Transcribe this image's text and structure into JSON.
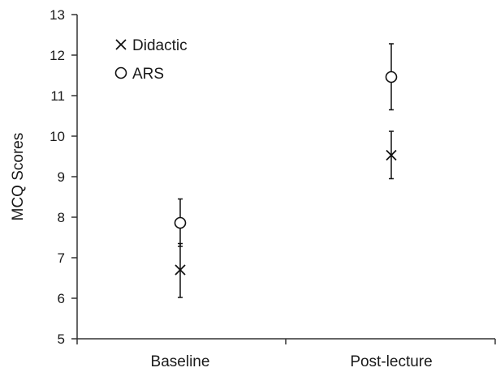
{
  "chart_data": {
    "type": "scatter",
    "ylabel": "MCQ  Scores",
    "categories": [
      "Baseline",
      "Post-lecture"
    ],
    "ylim": [
      5,
      13
    ],
    "yticks": [
      5,
      6,
      7,
      8,
      9,
      10,
      11,
      12,
      13
    ],
    "legend_position": "top-left",
    "series": [
      {
        "name": "Didactic",
        "marker": "x",
        "points": [
          {
            "category": "Baseline",
            "mean": 6.7,
            "err_low": 6.02,
            "err_high": 7.35
          },
          {
            "category": "Post-lecture",
            "mean": 9.53,
            "err_low": 8.95,
            "err_high": 10.12
          }
        ]
      },
      {
        "name": "ARS",
        "marker": "circle",
        "points": [
          {
            "category": "Baseline",
            "mean": 7.86,
            "err_low": 7.28,
            "err_high": 8.45
          },
          {
            "category": "Post-lecture",
            "mean": 11.46,
            "err_low": 10.65,
            "err_high": 12.28
          }
        ]
      }
    ]
  }
}
